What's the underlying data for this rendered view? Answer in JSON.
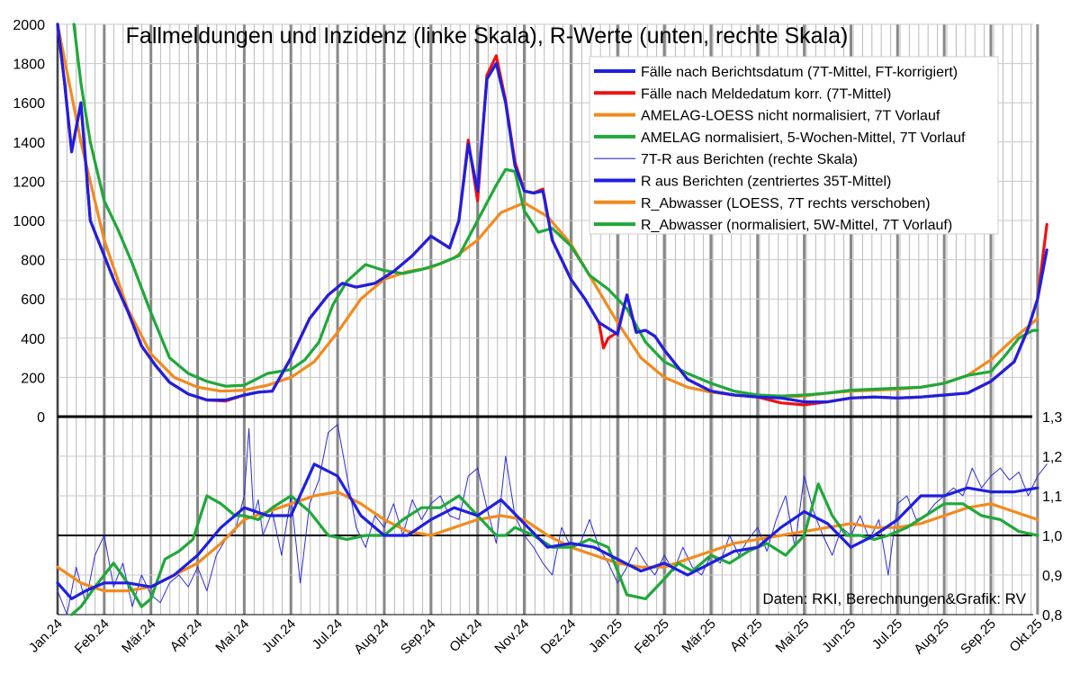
{
  "chart_data": {
    "type": "line",
    "title": "Fallmeldungen und Inzidenz (linke Skala), R-Werte (unten, rechte Skala)",
    "credit": "Daten: RKI, Berechnungen&Grafik: RV",
    "x_labels": [
      "Jan.24",
      "Feb.24",
      "Mär.24",
      "Apr.24",
      "Mai.24",
      "Jun.24",
      "Jul.24",
      "Aug.24",
      "Sep.24",
      "Okt.24",
      "Nov.24",
      "Dez.24",
      "Jan.25",
      "Feb.25",
      "Mär.25",
      "Apr.25",
      "Mai.25",
      "Jun.25",
      "Jul.25",
      "Aug.25",
      "Sep.25",
      "Okt.25"
    ],
    "left_axis": {
      "range": [
        0,
        2000
      ],
      "ticks": [
        "0",
        "200",
        "400",
        "600",
        "800",
        "1000",
        "1200",
        "1400",
        "1600",
        "1800",
        "2000"
      ]
    },
    "right_axis": {
      "range": [
        0.8,
        1.3
      ],
      "ticks": [
        "0,8",
        "0,9",
        "1,0",
        "1,1",
        "1,2",
        "1,3"
      ],
      "reference_line": 1.0
    },
    "grid": true,
    "legend_position": "top-right",
    "colors": {
      "blue": "#1f1fe0",
      "red": "#ee1111",
      "orange": "#f28a1e",
      "green": "#20a83a",
      "thin_blue": "#2c2cd6"
    },
    "legend": [
      {
        "label": "Fälle nach Berichtsdatum (7T-Mittel, FT-korrigiert)",
        "color": "#1f1fe0",
        "style": "thick"
      },
      {
        "label": "Fälle nach Meldedatum korr. (7T-Mittel)",
        "color": "#ee1111",
        "style": "thick"
      },
      {
        "label": "AMELAG-LOESS nicht normalisiert, 7T Vorlauf",
        "color": "#f28a1e",
        "style": "thick"
      },
      {
        "label": "AMELAG normalisiert, 5-Wochen-Mittel, 7T Vorlauf",
        "color": "#20a83a",
        "style": "thick"
      },
      {
        "label": "7T-R aus Berichten (rechte Skala)",
        "color": "#2c2cd6",
        "style": "thin"
      },
      {
        "label": "R aus Berichten (zentriertes 35T-Mittel)",
        "color": "#1f1fe0",
        "style": "thick"
      },
      {
        "label": "R_Abwasser (LOESS, 7T rechts verschoben)",
        "color": "#f28a1e",
        "style": "thick"
      },
      {
        "label": "R_Abwasser (normalisiert, 5W-Mittel, 7T Vorlauf)",
        "color": "#20a83a",
        "style": "thick"
      }
    ],
    "cases_series": [
      {
        "name": "Fälle nach Berichtsdatum (7T-Mittel, FT-korrigiert)",
        "color": "#1f1fe0",
        "width": 3.2,
        "x": [
          0,
          0.15,
          0.3,
          0.5,
          0.7,
          0.9,
          1.2,
          1.5,
          1.8,
          2.1,
          2.4,
          2.8,
          3.2,
          3.6,
          4.0,
          4.3,
          4.6,
          5.0,
          5.4,
          5.8,
          6.1,
          6.4,
          6.8,
          7.2,
          7.6,
          8.0,
          8.4,
          8.6,
          8.8,
          9.0,
          9.2,
          9.4,
          9.6,
          9.8,
          10.0,
          10.2,
          10.4,
          10.6,
          10.8,
          11.0,
          11.3,
          11.6,
          12.0,
          12.2,
          12.4,
          12.6,
          12.8,
          13.0,
          13.5,
          14.0,
          14.5,
          15.0,
          15.5,
          16.0,
          16.5,
          17.0,
          17.5,
          18.0,
          18.5,
          19.0,
          19.5,
          20.0,
          20.5,
          20.8,
          21.0,
          21.2
        ],
        "y": [
          2000,
          1700,
          1350,
          1600,
          1000,
          880,
          700,
          540,
          360,
          260,
          175,
          115,
          85,
          85,
          110,
          125,
          130,
          300,
          500,
          620,
          680,
          660,
          680,
          740,
          820,
          920,
          860,
          1000,
          1390,
          1150,
          1720,
          1800,
          1600,
          1280,
          1150,
          1140,
          1150,
          900,
          800,
          700,
          600,
          480,
          420,
          620,
          430,
          440,
          410,
          340,
          190,
          130,
          110,
          100,
          95,
          75,
          75,
          95,
          100,
          95,
          100,
          110,
          120,
          180,
          280,
          450,
          600,
          850
        ]
      },
      {
        "name": "Fälle nach Meldedatum korr. (7T-Mittel)",
        "color": "#ee1111",
        "width": 3.2,
        "x": [
          0,
          0.15,
          0.3,
          0.5,
          0.7,
          0.9,
          1.2,
          1.5,
          1.8,
          2.1,
          2.4,
          2.8,
          3.2,
          3.6,
          4.0,
          4.3,
          4.6,
          5.0,
          5.4,
          5.8,
          6.1,
          6.4,
          6.8,
          7.2,
          7.6,
          8.0,
          8.4,
          8.6,
          8.8,
          9.0,
          9.2,
          9.4,
          9.6,
          9.8,
          10.0,
          10.2,
          10.4,
          10.6,
          10.8,
          11.0,
          11.3,
          11.6,
          11.7,
          11.8,
          12.0,
          12.2,
          12.4,
          12.6,
          12.8,
          13.0,
          13.5,
          14.0,
          14.5,
          15.0,
          15.5,
          16.0,
          16.5,
          17.0,
          17.5,
          18.0,
          18.5,
          19.0,
          19.5,
          20.0,
          20.5,
          20.8,
          21.0,
          21.2
        ],
        "y": [
          2000,
          1700,
          1350,
          1600,
          1000,
          880,
          700,
          540,
          360,
          260,
          175,
          115,
          85,
          80,
          110,
          125,
          130,
          300,
          500,
          620,
          680,
          660,
          680,
          740,
          820,
          920,
          860,
          1000,
          1410,
          1100,
          1740,
          1840,
          1610,
          1300,
          1150,
          1140,
          1160,
          900,
          800,
          700,
          600,
          480,
          350,
          400,
          430,
          620,
          430,
          440,
          410,
          340,
          190,
          130,
          110,
          100,
          70,
          60,
          75,
          95,
          100,
          95,
          100,
          110,
          120,
          180,
          280,
          450,
          600,
          980
        ]
      },
      {
        "name": "AMELAG-LOESS nicht normalisiert, 7T Vorlauf",
        "color": "#f28a1e",
        "width": 3.2,
        "x": [
          0,
          0.5,
          1.0,
          1.5,
          2.0,
          2.5,
          3.0,
          3.5,
          4.0,
          4.5,
          5.0,
          5.5,
          6.0,
          6.5,
          7.0,
          7.5,
          8.0,
          8.5,
          9.0,
          9.5,
          10.0,
          10.5,
          11.0,
          11.5,
          12.0,
          12.5,
          13.0,
          13.5,
          14.0,
          14.5,
          15.0,
          15.5,
          16.0,
          16.5,
          17.0,
          17.5,
          18.0,
          18.5,
          19.0,
          19.5,
          20.0,
          20.5,
          21.0
        ],
        "y": [
          2000,
          1400,
          900,
          550,
          320,
          200,
          150,
          130,
          135,
          160,
          200,
          280,
          430,
          600,
          700,
          740,
          760,
          810,
          900,
          1040,
          1090,
          1020,
          880,
          680,
          480,
          300,
          200,
          150,
          125,
          110,
          105,
          100,
          105,
          120,
          130,
          135,
          140,
          150,
          170,
          210,
          290,
          400,
          500
        ]
      },
      {
        "name": "AMELAG normalisiert, 5-Wochen-Mittel, 7T Vorlauf",
        "color": "#20a83a",
        "width": 3.2,
        "x": [
          0.35,
          0.5,
          0.7,
          1.0,
          1.3,
          1.6,
          2.0,
          2.4,
          2.8,
          3.2,
          3.6,
          4.0,
          4.5,
          5.0,
          5.3,
          5.6,
          5.9,
          6.2,
          6.6,
          7.0,
          7.4,
          7.8,
          8.2,
          8.6,
          9.0,
          9.4,
          9.6,
          9.8,
          10.0,
          10.3,
          10.6,
          11.0,
          11.4,
          11.8,
          12.2,
          12.6,
          13.0,
          13.5,
          14.0,
          14.5,
          15.0,
          15.5,
          16.0,
          16.5,
          17.0,
          17.5,
          18.0,
          18.5,
          19.0,
          19.5,
          20.0,
          20.3,
          20.6,
          20.9,
          21.0
        ],
        "y": [
          2000,
          1700,
          1400,
          1100,
          950,
          780,
          530,
          300,
          220,
          180,
          155,
          160,
          220,
          240,
          290,
          380,
          570,
          690,
          775,
          745,
          730,
          750,
          780,
          820,
          1000,
          1180,
          1260,
          1250,
          1050,
          940,
          960,
          870,
          720,
          650,
          550,
          380,
          280,
          220,
          170,
          130,
          110,
          105,
          110,
          120,
          135,
          140,
          145,
          150,
          170,
          210,
          230,
          310,
          400,
          440,
          440
        ]
      }
    ],
    "r_series": [
      {
        "name": "7T-R aus Berichten (rechte Skala)",
        "color": "#2c2cd6",
        "width": 1.0,
        "x": [
          0,
          0.2,
          0.4,
          0.6,
          0.8,
          1.0,
          1.2,
          1.4,
          1.6,
          1.8,
          2.0,
          2.2,
          2.4,
          2.6,
          2.8,
          3.0,
          3.2,
          3.4,
          3.6,
          3.8,
          4.0,
          4.1,
          4.2,
          4.3,
          4.4,
          4.6,
          4.8,
          5.0,
          5.2,
          5.4,
          5.6,
          5.8,
          6.0,
          6.2,
          6.4,
          6.6,
          6.8,
          7.0,
          7.2,
          7.4,
          7.6,
          7.8,
          8.0,
          8.2,
          8.4,
          8.6,
          8.8,
          9.0,
          9.2,
          9.4,
          9.6,
          9.8,
          10.0,
          10.2,
          10.4,
          10.6,
          10.8,
          11.0,
          11.2,
          11.4,
          11.6,
          11.8,
          12.0,
          12.2,
          12.4,
          12.6,
          12.8,
          13.0,
          13.2,
          13.4,
          13.6,
          13.8,
          14.0,
          14.2,
          14.4,
          14.6,
          14.8,
          15.0,
          15.2,
          15.4,
          15.6,
          15.8,
          16.0,
          16.2,
          16.4,
          16.6,
          16.8,
          17.0,
          17.2,
          17.4,
          17.6,
          17.8,
          18.0,
          18.2,
          18.4,
          18.6,
          18.8,
          19.0,
          19.2,
          19.4,
          19.6,
          19.8,
          20.0,
          20.2,
          20.4,
          20.6,
          20.8,
          21.0,
          21.2
        ],
        "y": [
          0.86,
          0.79,
          0.92,
          0.83,
          0.95,
          1.0,
          0.87,
          0.93,
          0.82,
          0.9,
          0.85,
          0.83,
          0.88,
          0.9,
          0.87,
          0.92,
          0.86,
          0.95,
          0.99,
          1.01,
          1.1,
          1.27,
          1.05,
          1.09,
          1.0,
          1.06,
          0.95,
          1.1,
          0.88,
          1.08,
          1.14,
          1.26,
          1.28,
          1.15,
          1.02,
          0.97,
          1.05,
          1.02,
          1.08,
          1.0,
          1.09,
          1.04,
          1.08,
          1.1,
          1.05,
          1.04,
          1.15,
          1.17,
          1.07,
          0.98,
          1.2,
          1.05,
          1.0,
          0.97,
          0.93,
          0.9,
          1.02,
          0.97,
          0.98,
          1.04,
          0.97,
          0.93,
          0.88,
          0.92,
          0.97,
          0.93,
          0.9,
          0.95,
          0.91,
          0.97,
          0.92,
          0.9,
          0.95,
          0.93,
          1.0,
          0.95,
          0.99,
          1.02,
          0.96,
          1.04,
          1.1,
          0.97,
          1.15,
          1.06,
          1.0,
          0.95,
          1.02,
          1.0,
          1.05,
          0.99,
          1.04,
          0.9,
          1.08,
          1.1,
          1.04,
          1.05,
          1.08,
          1.1,
          1.12,
          1.1,
          1.17,
          1.12,
          1.15,
          1.17,
          1.14,
          1.16,
          1.1,
          1.15,
          1.18
        ]
      },
      {
        "name": "R aus Berichten (zentriertes 35T-Mittel)",
        "color": "#1f1fe0",
        "width": 3.2,
        "x": [
          0,
          0.3,
          0.6,
          1.0,
          1.5,
          2.0,
          2.5,
          3.0,
          3.5,
          4.0,
          4.5,
          5.0,
          5.5,
          6.0,
          6.5,
          7.0,
          7.5,
          8.0,
          8.5,
          9.0,
          9.5,
          10.0,
          10.5,
          11.0,
          11.5,
          12.0,
          12.5,
          13.0,
          13.5,
          14.0,
          14.5,
          15.0,
          15.5,
          16.0,
          16.5,
          17.0,
          17.5,
          18.0,
          18.5,
          19.0,
          19.5,
          20.0,
          20.5,
          21.0
        ],
        "y": [
          0.88,
          0.84,
          0.86,
          0.88,
          0.88,
          0.87,
          0.9,
          0.95,
          1.02,
          1.07,
          1.05,
          1.05,
          1.18,
          1.15,
          1.05,
          1.0,
          1.0,
          1.04,
          1.07,
          1.05,
          1.09,
          1.03,
          0.97,
          0.98,
          0.97,
          0.94,
          0.91,
          0.93,
          0.9,
          0.93,
          0.96,
          0.97,
          1.02,
          1.06,
          1.03,
          0.97,
          1.0,
          1.04,
          1.1,
          1.1,
          1.12,
          1.11,
          1.11,
          1.12
        ]
      },
      {
        "name": "R_Abwasser (LOESS, 7T rechts verschoben)",
        "color": "#f28a1e",
        "width": 3.2,
        "x": [
          0,
          0.5,
          1.0,
          1.5,
          2.0,
          2.5,
          3.0,
          3.5,
          4.0,
          4.5,
          5.0,
          5.5,
          6.0,
          6.5,
          7.0,
          7.5,
          8.0,
          8.5,
          9.0,
          9.5,
          10.0,
          10.5,
          11.0,
          11.5,
          12.0,
          12.5,
          13.0,
          13.5,
          14.0,
          14.5,
          15.0,
          15.5,
          16.0,
          16.5,
          17.0,
          17.5,
          18.0,
          18.5,
          19.0,
          19.5,
          20.0,
          20.5,
          21.0
        ],
        "y": [
          0.92,
          0.88,
          0.86,
          0.86,
          0.87,
          0.9,
          0.93,
          0.98,
          1.04,
          1.06,
          1.08,
          1.1,
          1.11,
          1.08,
          1.04,
          1.01,
          1.0,
          1.02,
          1.04,
          1.05,
          1.04,
          1.0,
          0.97,
          0.95,
          0.93,
          0.92,
          0.92,
          0.94,
          0.96,
          0.98,
          0.99,
          1.0,
          1.01,
          1.02,
          1.03,
          1.02,
          1.02,
          1.03,
          1.05,
          1.07,
          1.08,
          1.06,
          1.04
        ]
      },
      {
        "name": "R_Abwasser (normalisiert, 5W-Mittel, 7T Vorlauf)",
        "color": "#20a83a",
        "width": 3.2,
        "x": [
          0.3,
          0.5,
          0.8,
          1.0,
          1.2,
          1.5,
          1.8,
          2.0,
          2.3,
          2.6,
          2.9,
          3.2,
          3.5,
          3.8,
          4.0,
          4.3,
          4.6,
          5.0,
          5.4,
          5.8,
          6.2,
          6.6,
          7.0,
          7.4,
          7.8,
          8.2,
          8.6,
          9.0,
          9.4,
          9.6,
          9.8,
          10.2,
          10.6,
          11.0,
          11.4,
          11.8,
          12.2,
          12.6,
          13.0,
          13.3,
          13.6,
          14.0,
          14.4,
          14.8,
          15.2,
          15.6,
          16.0,
          16.3,
          16.6,
          16.9,
          17.2,
          17.5,
          17.8,
          18.2,
          18.6,
          19.0,
          19.4,
          19.8,
          20.2,
          20.6,
          21.0
        ],
        "y": [
          0.8,
          0.82,
          0.87,
          0.9,
          0.93,
          0.88,
          0.82,
          0.84,
          0.94,
          0.96,
          0.99,
          1.1,
          1.08,
          1.05,
          1.05,
          1.04,
          1.07,
          1.1,
          1.06,
          1.0,
          0.99,
          1.0,
          1.0,
          1.04,
          1.07,
          1.07,
          1.1,
          1.05,
          1.0,
          1.0,
          1.02,
          1.0,
          0.97,
          0.97,
          0.99,
          0.97,
          0.85,
          0.84,
          0.89,
          0.93,
          0.91,
          0.95,
          0.93,
          0.96,
          0.98,
          0.95,
          1.0,
          1.13,
          1.05,
          1.0,
          1.0,
          0.99,
          1.0,
          1.02,
          1.05,
          1.08,
          1.08,
          1.05,
          1.04,
          1.01,
          1.0
        ]
      }
    ]
  }
}
